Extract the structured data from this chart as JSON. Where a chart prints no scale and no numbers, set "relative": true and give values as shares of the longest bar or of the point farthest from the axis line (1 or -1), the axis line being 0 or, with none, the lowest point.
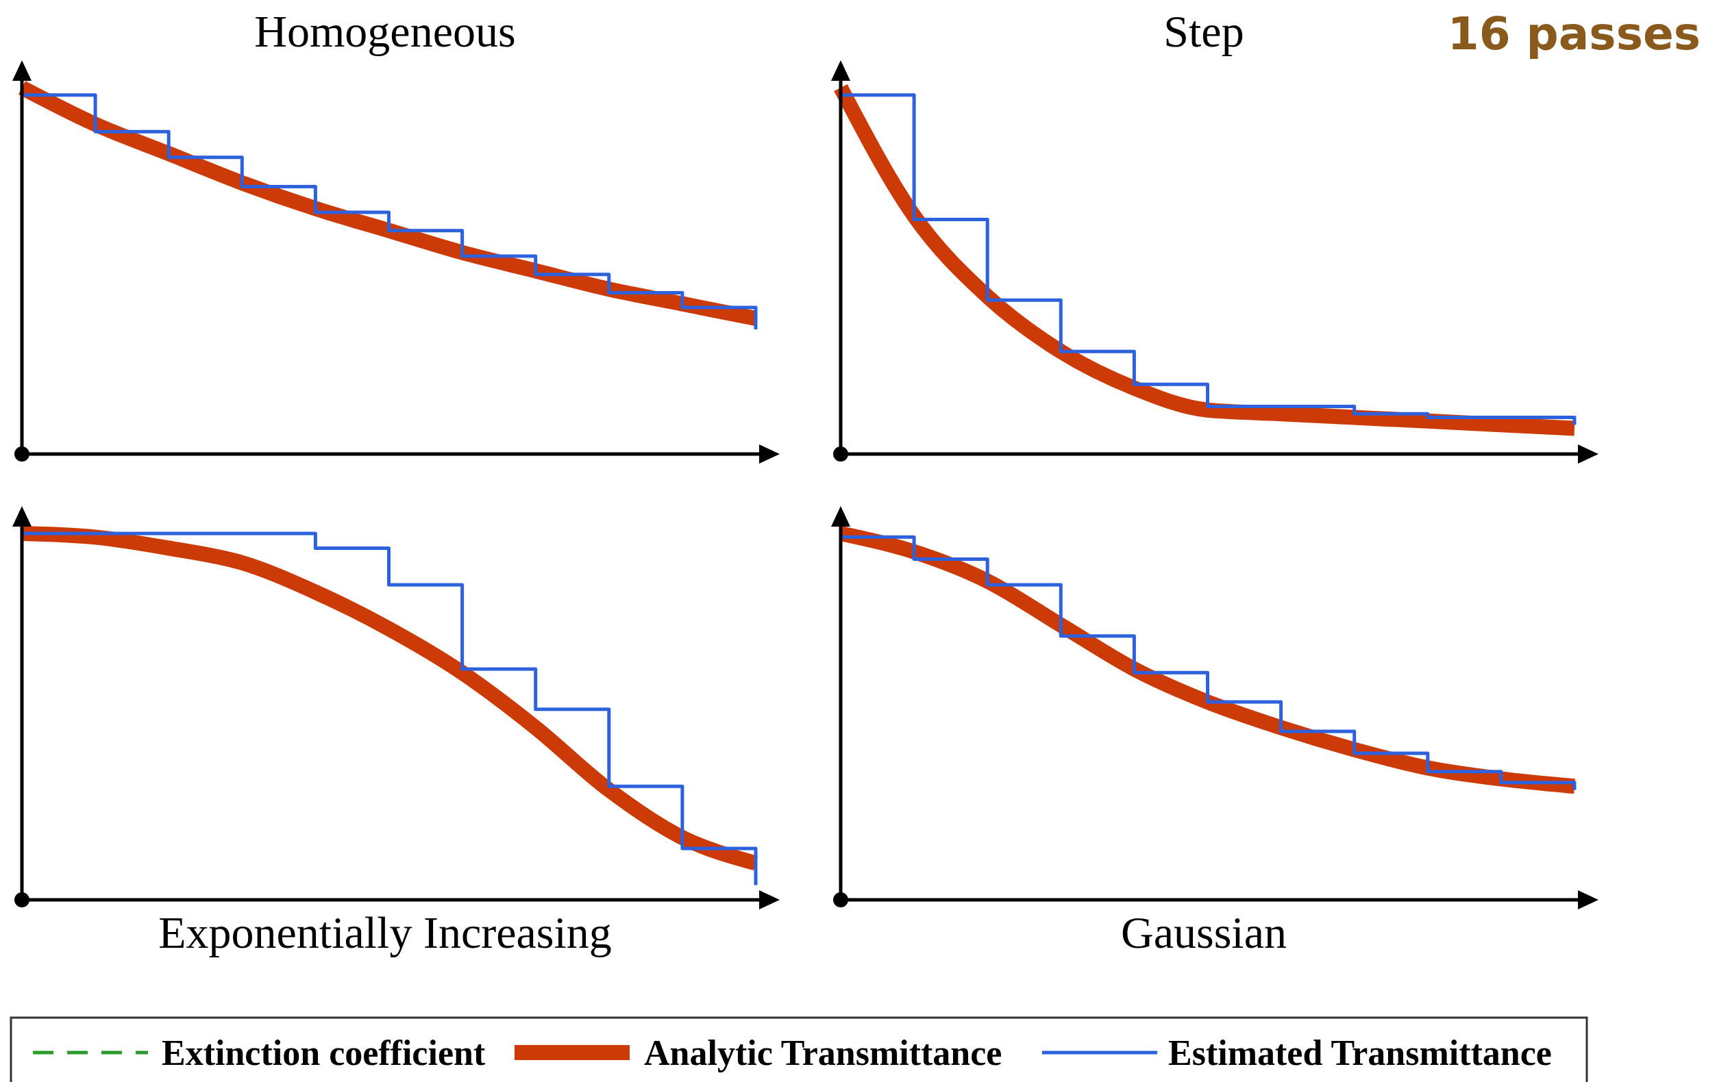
{
  "chart_data": [
    {
      "type": "line",
      "title": "Homogeneous",
      "relative": true,
      "legend": "bottom",
      "categories": [
        null,
        null,
        null,
        null,
        null,
        null,
        null,
        null,
        null,
        null,
        null
      ],
      "series": [
        {
          "name": "Extinction coefficient",
          "type": "line",
          "line_style": "dashed",
          "color": "#2a9a2a",
          "values": [
            null,
            null,
            null,
            null,
            null,
            null,
            null,
            null,
            null,
            null,
            null
          ]
        },
        {
          "name": "Analytic Transmittance",
          "type": "line",
          "color": "#cc3a08",
          "values": [
            1,
            0.9,
            0.82,
            0.74,
            0.67,
            0.61,
            0.55,
            0.5,
            0.45,
            0.41,
            0.37
          ]
        },
        {
          "name": "Estimated Transmittance",
          "type": "step",
          "color": "#2e62dc",
          "values": [
            0.98,
            0.88,
            0.81,
            0.73,
            0.66,
            0.61,
            0.54,
            0.49,
            0.44,
            0.4,
            0.34
          ]
        }
      ]
    },
    {
      "type": "line",
      "title": "Step",
      "relative": true,
      "annotations": [
        "16 passes"
      ],
      "categories": [
        null,
        null,
        null,
        null,
        null,
        null,
        null,
        null,
        null,
        null,
        null
      ],
      "series": [
        {
          "type": "line",
          "color": "#cc3a08",
          "values": [
            1,
            0.65,
            0.43,
            0.28,
            0.18,
            0.12,
            0.11,
            0.1,
            0.09,
            0.08,
            0.07
          ]
        },
        {
          "type": "step",
          "color": "#2e62dc",
          "values": [
            0.98,
            0.64,
            0.42,
            0.28,
            0.19,
            0.13,
            0.13,
            0.11,
            0.1,
            0.1,
            0.08
          ]
        }
      ]
    },
    {
      "type": "line",
      "title": "Exponentially Increasing",
      "relative": true,
      "categories": [
        null,
        null,
        null,
        null,
        null,
        null,
        null,
        null,
        null,
        null,
        null
      ],
      "series": [
        {
          "type": "line",
          "color": "#cc3a08",
          "values": [
            1,
            0.99,
            0.96,
            0.92,
            0.84,
            0.74,
            0.62,
            0.47,
            0.3,
            0.17,
            0.1
          ]
        },
        {
          "type": "step",
          "color": "#2e62dc",
          "values": [
            1,
            1,
            1,
            1,
            0.96,
            0.86,
            0.63,
            0.52,
            0.31,
            0.14,
            0.04
          ]
        }
      ]
    },
    {
      "type": "line",
      "title": "Gaussian",
      "relative": true,
      "categories": [
        null,
        null,
        null,
        null,
        null,
        null,
        null,
        null,
        null,
        null,
        null
      ],
      "series": [
        {
          "type": "line",
          "color": "#cc3a08",
          "values": [
            1,
            0.95,
            0.87,
            0.75,
            0.63,
            0.54,
            0.47,
            0.41,
            0.36,
            0.33,
            0.31
          ]
        },
        {
          "type": "step",
          "color": "#2e62dc",
          "values": [
            0.99,
            0.93,
            0.86,
            0.72,
            0.62,
            0.54,
            0.46,
            0.4,
            0.35,
            0.32,
            0.3
          ]
        }
      ]
    }
  ]
}
